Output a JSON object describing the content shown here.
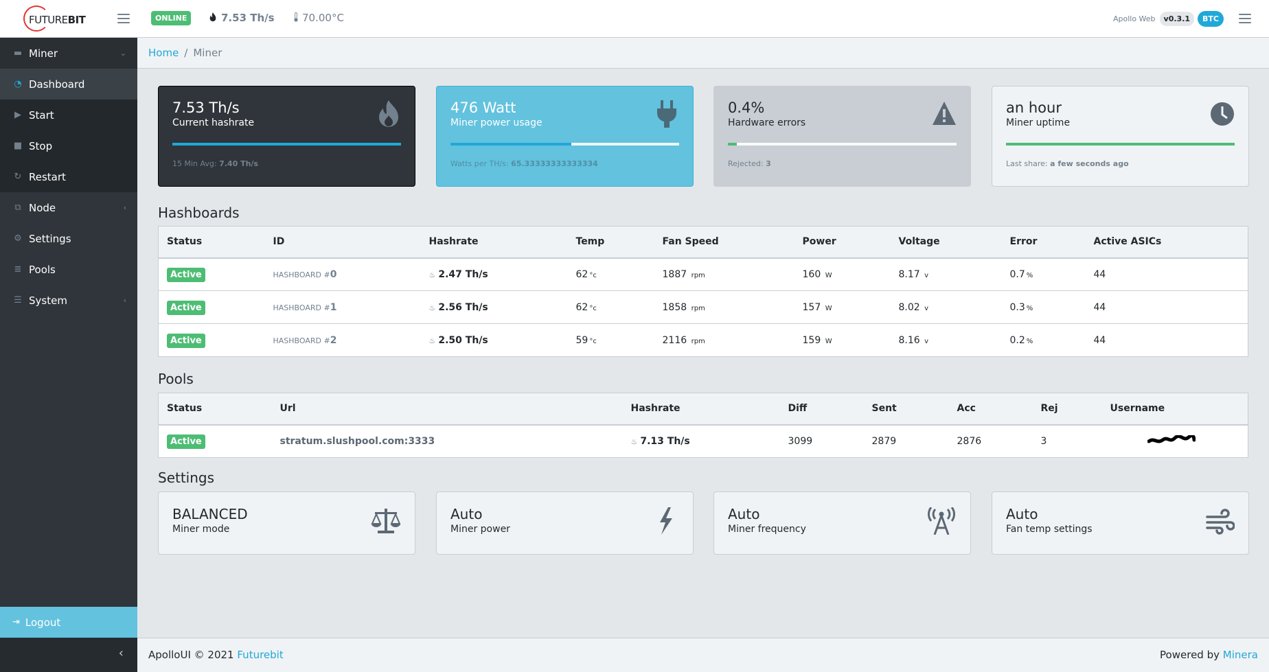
{
  "header": {
    "logo_text_a": "FUTURE",
    "logo_text_b": "BIT",
    "status": "ONLINE",
    "hashrate": "7.53 Th/s",
    "temperature": "70.00°C",
    "app_name": "Apollo Web",
    "version": "v0.3.1",
    "coin": "BTC"
  },
  "sidebar": {
    "items": [
      {
        "label": "Miner",
        "icon": "hdd-icon"
      },
      {
        "label": "Dashboard",
        "icon": "gauge-icon"
      },
      {
        "label": "Start",
        "icon": "play-icon"
      },
      {
        "label": "Stop",
        "icon": "stop-icon"
      },
      {
        "label": "Restart",
        "icon": "refresh-icon"
      },
      {
        "label": "Node",
        "icon": "sitemap-icon"
      },
      {
        "label": "Settings",
        "icon": "gear-icon"
      },
      {
        "label": "Pools",
        "icon": "database-icon"
      },
      {
        "label": "System",
        "icon": "server-icon"
      }
    ],
    "logout": "Logout"
  },
  "breadcrumb": {
    "home": "Home",
    "current": "Miner"
  },
  "stats": [
    {
      "value": "7.53 Th/s",
      "label": "Current hashrate",
      "foot_label": "15 Min Avg:",
      "foot_value": "7.40 Th/s",
      "progress": 1.0,
      "color": "#20a8d8",
      "icon": "fire-icon"
    },
    {
      "value": "476 Watt",
      "label": "Miner power usage",
      "foot_label": "Watts per TH/s:",
      "foot_value": "65.33333333333334",
      "progress": 0.53,
      "color": "#20a8d8",
      "icon": "plug-icon"
    },
    {
      "value": "0.4%",
      "label": "Hardware errors",
      "foot_label": "Rejected:",
      "foot_value": "3",
      "progress": 0.04,
      "color": "#4dbd74",
      "icon": "warning-icon"
    },
    {
      "value": "an hour",
      "label": "Miner uptime",
      "foot_label": "Last share:",
      "foot_value": "a few seconds ago",
      "progress": 1.0,
      "color": "#4dbd74",
      "icon": "clock-icon"
    }
  ],
  "hashboards": {
    "title": "Hashboards",
    "columns": [
      "Status",
      "ID",
      "Hashrate",
      "Temp",
      "Fan Speed",
      "Power",
      "Voltage",
      "Error",
      "Active ASICs"
    ],
    "rows": [
      {
        "status": "Active",
        "id_prefix": "HASHBOARD #",
        "id": "0",
        "hashrate": "2.47 Th/s",
        "temp": "62",
        "temp_unit": "°c",
        "fan": "1887",
        "fan_unit": "rpm",
        "power": "160",
        "power_unit": "W",
        "voltage": "8.17",
        "voltage_unit": "v",
        "error": "0.7",
        "error_unit": "%",
        "asics": "44"
      },
      {
        "status": "Active",
        "id_prefix": "HASHBOARD #",
        "id": "1",
        "hashrate": "2.56 Th/s",
        "temp": "62",
        "temp_unit": "°c",
        "fan": "1858",
        "fan_unit": "rpm",
        "power": "157",
        "power_unit": "W",
        "voltage": "8.02",
        "voltage_unit": "v",
        "error": "0.3",
        "error_unit": "%",
        "asics": "44"
      },
      {
        "status": "Active",
        "id_prefix": "HASHBOARD #",
        "id": "2",
        "hashrate": "2.50 Th/s",
        "temp": "59",
        "temp_unit": "°c",
        "fan": "2116",
        "fan_unit": "rpm",
        "power": "159",
        "power_unit": "W",
        "voltage": "8.16",
        "voltage_unit": "v",
        "error": "0.2",
        "error_unit": "%",
        "asics": "44"
      }
    ]
  },
  "pools": {
    "title": "Pools",
    "columns": [
      "Status",
      "Url",
      "Hashrate",
      "Diff",
      "Sent",
      "Acc",
      "Rej",
      "Username"
    ],
    "rows": [
      {
        "status": "Active",
        "url": "stratum.slushpool.com:3333",
        "hashrate": "7.13 Th/s",
        "diff": "3099",
        "sent": "2879",
        "acc": "2876",
        "rej": "3"
      }
    ]
  },
  "settings": {
    "title": "Settings",
    "cards": [
      {
        "value": "BALANCED",
        "label": "Miner mode",
        "icon": "balance-scale-icon"
      },
      {
        "value": "Auto",
        "label": "Miner power",
        "icon": "bolt-icon"
      },
      {
        "value": "Auto",
        "label": "Miner frequency",
        "icon": "broadcast-tower-icon"
      },
      {
        "value": "Auto",
        "label": "Fan temp settings",
        "icon": "wind-icon"
      }
    ]
  },
  "footer": {
    "left_text": "ApolloUI © 2021",
    "left_link": "Futurebit",
    "right_text": "Powered by",
    "right_link": "Minera"
  }
}
